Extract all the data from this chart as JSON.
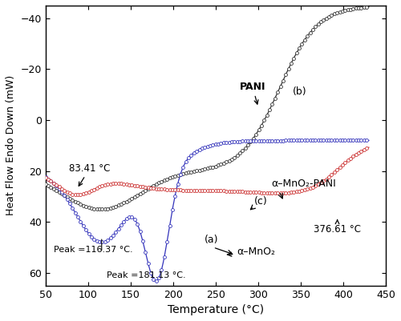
{
  "title": "",
  "xlabel": "Temperature (°C)",
  "ylabel": "Heat Flow Endo Down (mW)",
  "xlim": [
    50,
    450
  ],
  "ylim": [
    65,
    -45
  ],
  "xticks": [
    50,
    100,
    150,
    200,
    250,
    300,
    350,
    400,
    450
  ],
  "yticks": [
    -40,
    -20,
    0,
    20,
    40,
    60
  ],
  "bg_color": "#ffffff",
  "curve_a_color": "#3333bb",
  "curve_b_color": "#333333",
  "curve_c_color": "#cc3333",
  "annotation_83": "83.41 °C",
  "annotation_116": "Peak =116.37 °C.",
  "annotation_181": "Peak =181.13 °C.",
  "annotation_376": "376.61 °C",
  "label_pani": "PANI",
  "label_b": "(b)",
  "label_a": "(a)",
  "label_c": "(c)",
  "label_mno2": "α–MnO₂",
  "label_composite": "α–MnO₂-PANI"
}
